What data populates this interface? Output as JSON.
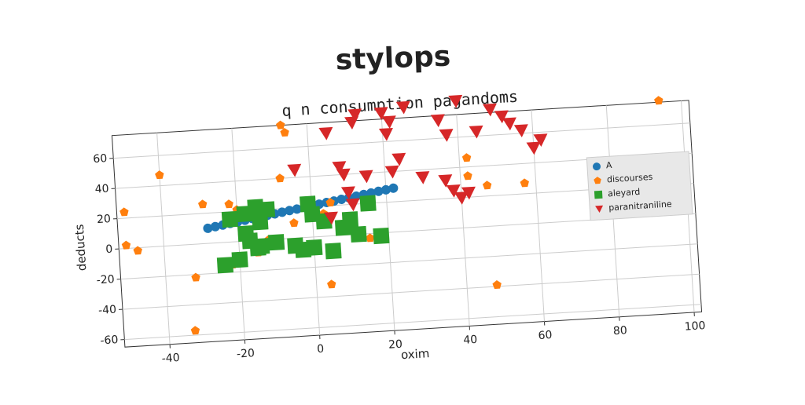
{
  "chart_data": {
    "type": "scatter",
    "title": "stylops",
    "subtitle": "q n consumption pagandoms",
    "x_label": "oxim",
    "y_label": "deducts",
    "xlim": [
      -52,
      102
    ],
    "ylim": [
      -65,
      75
    ],
    "xticks": [
      -40,
      -20,
      0,
      20,
      40,
      60,
      80,
      100
    ],
    "yticks": [
      -60,
      -40,
      -20,
      0,
      20,
      40,
      60
    ],
    "grid": true,
    "legend": "center right",
    "series": [
      {
        "name": "A",
        "color": "#1f77b4",
        "marker": "circle",
        "x": [
          -28,
          -26,
          -24,
          -22,
          -20,
          -18,
          -16,
          -14,
          -12,
          -10,
          -8,
          -6,
          -4,
          -2,
          0,
          2,
          4,
          6,
          8,
          10,
          12,
          14,
          16,
          18,
          20,
          22
        ],
        "y": [
          10,
          10.8,
          11.5,
          12.3,
          13,
          13.8,
          14.6,
          15.3,
          16.1,
          16.8,
          17.6,
          18.4,
          19.1,
          19.9,
          20.6,
          21.4,
          22.2,
          22.9,
          23.7,
          24.4,
          25.2,
          26,
          26.7,
          27.5,
          28.2,
          29
        ]
      },
      {
        "name": "discourses",
        "color": "#ff7f0e",
        "marker": "pentagon",
        "x": [
          94,
          -7,
          -6,
          -40,
          -8,
          -22,
          -50,
          -29,
          -20,
          -50,
          -47,
          -22,
          -32,
          -33,
          4,
          48,
          15,
          -15,
          -12,
          5,
          42,
          42,
          47,
          57,
          -5,
          3
        ],
        "y": [
          76,
          75,
          70,
          47,
          40,
          25,
          24,
          26,
          21,
          2,
          -2,
          -15,
          -22,
          -57,
          -32,
          -39,
          -3,
          -8,
          0,
          22,
          46,
          34,
          27,
          27,
          10,
          15
        ]
      },
      {
        "name": "aleyard",
        "color": "#2ca02c",
        "marker": "square",
        "x": [
          -22,
          -18,
          -15,
          -14,
          -12,
          -18,
          -15,
          -20,
          -24,
          -17,
          -10,
          -5,
          -1,
          0,
          3,
          -3,
          0,
          5,
          8,
          10,
          12,
          15,
          18,
          -14
        ],
        "y": [
          15,
          18,
          22,
          12,
          20,
          5,
          -5,
          -12,
          -15,
          0,
          -2,
          -5,
          22,
          15,
          10,
          -8,
          -7,
          -10,
          5,
          10,
          0,
          20,
          -2,
          -4
        ]
      },
      {
        "name": "paranitraniline",
        "color": "#d62728",
        "marker": "triangle-down",
        "x": [
          5,
          12,
          13,
          20,
          22,
          26,
          21,
          35,
          40,
          37,
          45,
          49,
          52,
          54,
          57,
          62,
          60,
          24,
          22,
          15,
          8,
          9,
          30,
          36,
          38,
          40,
          42,
          10,
          11,
          5,
          -4
        ],
        "y": [
          68,
          74,
          79,
          79,
          73,
          82,
          65,
          72,
          84,
          62,
          63,
          77,
          72,
          67,
          62,
          55,
          50,
          48,
          40,
          38,
          45,
          40,
          35,
          32,
          25,
          20,
          23,
          28,
          20,
          12,
          45
        ]
      }
    ]
  }
}
